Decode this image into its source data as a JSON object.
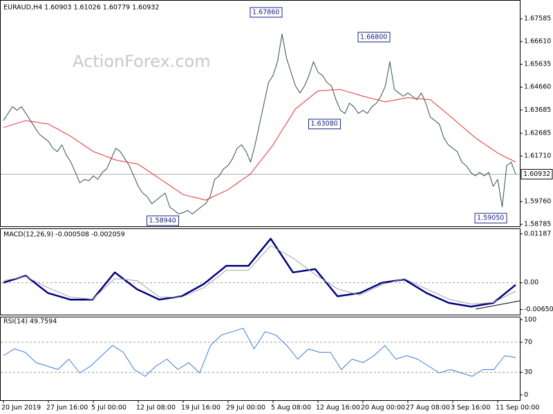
{
  "chart_data": [
    {
      "type": "line",
      "title": "EURAUD,H4  1.60903 1.61026 1.60779 1.60932",
      "watermark": "ActionForex.com",
      "categories": [
        "20 Jun 2019",
        null,
        null,
        null,
        null,
        null,
        null,
        null,
        null,
        null,
        "27 Jun 16:00",
        null,
        null,
        null,
        null,
        null,
        null,
        null,
        null,
        null,
        "5 Jul 00:00",
        null,
        null,
        null,
        null,
        null,
        null,
        null,
        null,
        null,
        "12 Jul 08:00",
        null,
        null,
        null,
        null,
        null,
        null,
        null,
        null,
        null,
        "19 Jul 16:00",
        null,
        null,
        null,
        null,
        null,
        null,
        null,
        null,
        null,
        "29 Jul 00:00",
        null,
        null,
        null,
        null,
        null,
        null,
        null,
        null,
        null,
        "5 Aug 08:00",
        null,
        null,
        null,
        null,
        null,
        null,
        null,
        null,
        null,
        "12 Aug 16:00",
        null,
        null,
        null,
        null,
        null,
        null,
        null,
        null,
        null,
        "20 Aug 00:00",
        null,
        null,
        null,
        null,
        null,
        null,
        null,
        null,
        null,
        "27 Aug 08:00",
        null,
        null,
        null,
        null,
        null,
        null,
        null,
        null,
        null,
        "3 Sep 16:00",
        null,
        null,
        null,
        null,
        null,
        null,
        null,
        null,
        null,
        "11 Sep 00:00",
        null,
        null,
        null,
        null
      ],
      "series": [
        {
          "color": "#2f4f4f",
          "width": 1,
          "values": [
            1.6323,
            1.6353,
            1.6382,
            1.6367,
            1.6382,
            1.6353,
            1.6323,
            1.6293,
            1.6264,
            1.6249,
            1.6234,
            1.6204,
            1.619,
            1.6219,
            1.6175,
            1.6145,
            1.6101,
            1.6056,
            1.6071,
            1.6065,
            1.6086,
            1.6071,
            1.6101,
            1.6116,
            1.616,
            1.6204,
            1.619,
            1.616,
            1.613,
            1.6086,
            1.6041,
            1.6012,
            1.5997,
            1.5967,
            1.5982,
            1.5997,
            1.6012,
            1.5953,
            1.5938,
            1.5923,
            1.5929,
            1.5938,
            1.5923,
            1.5938,
            1.5953,
            1.5967,
            1.5997,
            1.6071,
            1.6086,
            1.6116,
            1.613,
            1.616,
            1.6204,
            1.6219,
            1.619,
            1.6145,
            1.6219,
            1.6308,
            1.6397,
            1.6486,
            1.6516,
            1.6575,
            1.6693,
            1.659,
            1.653,
            1.6471,
            1.6441,
            1.6471,
            1.6516,
            1.6575,
            1.653,
            1.6516,
            1.6486,
            1.6471,
            1.6412,
            1.6367,
            1.6353,
            1.6397,
            1.6382,
            1.6353,
            1.6367,
            1.6353,
            1.6382,
            1.6397,
            1.6427,
            1.6471,
            1.6575,
            1.6456,
            1.6441,
            1.6427,
            1.6441,
            1.6427,
            1.6412,
            1.6441,
            1.6397,
            1.6338,
            1.6323,
            1.6308,
            1.6249,
            1.6219,
            1.6204,
            1.619,
            1.6145,
            1.613,
            1.6101,
            1.6086,
            1.6101,
            1.6086,
            1.6101,
            1.6041,
            1.6071,
            1.5953,
            1.613,
            1.6145,
            1.6093
          ]
        },
        {
          "color": "#e03030",
          "width": 1,
          "values": [
            1.6293,
            1.6299,
            1.6305,
            1.6311,
            1.6317,
            1.6323,
            1.632,
            1.6317,
            1.6314,
            1.6311,
            1.6308,
            1.6297,
            1.6287,
            1.6276,
            1.6266,
            1.6255,
            1.6242,
            1.6229,
            1.6216,
            1.6203,
            1.619,
            1.6183,
            1.6176,
            1.6168,
            1.6161,
            1.6154,
            1.615,
            1.6147,
            1.6143,
            1.614,
            1.6136,
            1.6123,
            1.611,
            1.6097,
            1.6084,
            1.6071,
            1.6058,
            1.6045,
            1.6032,
            1.6019,
            1.6006,
            1.6001,
            1.5996,
            1.5992,
            1.5987,
            1.5982,
            1.5991,
            1.6,
            1.6009,
            1.6018,
            1.6027,
            1.6041,
            1.6054,
            1.6068,
            1.6081,
            1.6095,
            1.612,
            1.6145,
            1.6169,
            1.6194,
            1.6219,
            1.625,
            1.6281,
            1.6311,
            1.6342,
            1.6373,
            1.6388,
            1.6404,
            1.6419,
            1.6435,
            1.645,
            1.6451,
            1.6452,
            1.6454,
            1.6455,
            1.6456,
            1.645,
            1.6444,
            1.6439,
            1.6433,
            1.6427,
            1.6422,
            1.6417,
            1.6413,
            1.6408,
            1.6403,
            1.6407,
            1.641,
            1.6414,
            1.6417,
            1.6421,
            1.6419,
            1.6417,
            1.6416,
            1.6414,
            1.6412,
            1.6396,
            1.638,
            1.6364,
            1.6348,
            1.6332,
            1.6315,
            1.6299,
            1.6282,
            1.6266,
            1.6249,
            1.6236,
            1.6223,
            1.621,
            1.6197,
            1.6184,
            1.6174,
            1.6164,
            1.6155,
            1.6145
          ]
        }
      ],
      "ylim": [
        1.587,
        1.6836
      ],
      "yticks": [
        1.67585,
        {
          "value": 1.6661,
          "label": "1.66610"
        },
        1.65635,
        {
          "value": 1.6466,
          "label": "1.64660"
        },
        1.63685,
        1.62685,
        {
          "value": 1.6171,
          "label": "1.61710"
        },
        {
          "value": 1.5976,
          "label": "1.59760"
        },
        1.58785
      ],
      "current": {
        "value": 1.60932,
        "label": "1.60932"
      },
      "annotations": [
        {
          "bar": 62,
          "value": 1.6786,
          "label": "1.67860"
        },
        {
          "bar": 86,
          "value": 1.668,
          "label": "1.66800"
        },
        {
          "bar": 75,
          "value": 1.6308,
          "label": "1.63080"
        },
        {
          "bar": 39,
          "value": 1.5894,
          "label": "1.58940"
        },
        {
          "bar": 112,
          "value": 1.5905,
          "label": "1.59050"
        }
      ],
      "grid": false
    },
    {
      "type": "line",
      "title": "MACD(12,26,9) -0.000508 -0.002059",
      "series": [
        {
          "color": "#000080",
          "width": 2.5,
          "values": [
            0,
            0.0017,
            -0.0025,
            -0.0041,
            -0.0041,
            0.0025,
            -0.0016,
            -0.0041,
            -0.0033,
            -0.0003,
            0.0041,
            0.0041,
            0.0107,
            0.0025,
            0.0033,
            -0.0033,
            -0.0025,
            0,
            0.0008,
            -0.0025,
            -0.0049,
            -0.0058,
            -0.0049,
            -0.000508
          ]
        },
        {
          "color": "#a0a0a0",
          "width": 1,
          "values": [
            0.0005,
            0.0015,
            -0.0012,
            -0.0035,
            -0.004,
            0.001,
            0.0005,
            -0.0035,
            -0.0035,
            -0.0012,
            0.003,
            0.003,
            0.009,
            0.006,
            0.002,
            -0.0015,
            -0.003,
            -0.0005,
            0.001,
            -0.0015,
            -0.004,
            -0.0052,
            -0.0048,
            -0.002059
          ]
        }
      ],
      "ylim": [
        -0.00775,
        0.01302
      ],
      "yticks": [
        0.01187,
        {
          "value": 0,
          "label": "0.00"
        },
        -0.006502
      ],
      "grid": true
    },
    {
      "type": "line",
      "title": "RSI(14) 49.7594",
      "series": [
        {
          "color": "#3a7bd5",
          "width": 1,
          "values": [
            52.1,
            61.2,
            56.6,
            42.9,
            38.4,
            33.8,
            47.5,
            29.2,
            38.4,
            52.1,
            65.8,
            56.6,
            33.8,
            24.7,
            38.4,
            47.5,
            33.8,
            42.9,
            29.2,
            65.8,
            79.5,
            84.0,
            88.6,
            61.2,
            84.0,
            79.5,
            65.8,
            47.5,
            61.2,
            56.6,
            56.6,
            33.8,
            47.5,
            42.9,
            52.1,
            65.8,
            47.5,
            52.1,
            47.5,
            38.4,
            29.2,
            33.8,
            29.2,
            24.7,
            33.8,
            33.8,
            52.1,
            49.7594
          ]
        }
      ],
      "ylim": [
        -7,
        103
      ],
      "yticks": [
        100,
        70,
        30,
        0
      ],
      "grid": true
    }
  ]
}
